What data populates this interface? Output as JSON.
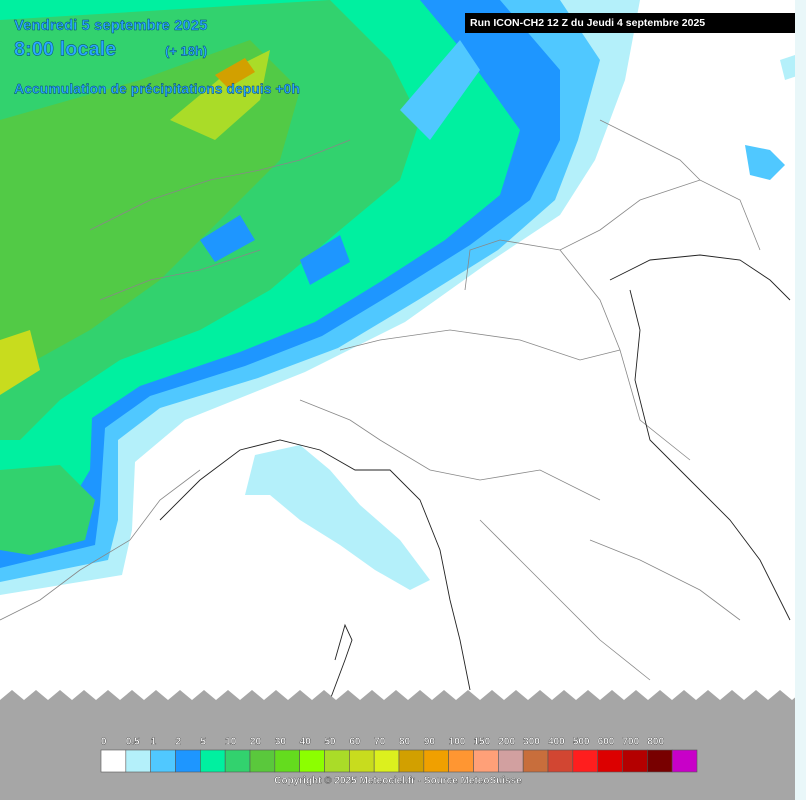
{
  "header": {
    "date": "Vendredi 5 septembre 2025",
    "time": "8:00 locale",
    "offset": "(+ 18h)",
    "field": "Accumulation de précipitations depuis +0h",
    "run": "Run ICON-CH2 12 Z du Jeudi 4 septembre 2025"
  },
  "legend": {
    "labels": [
      "0",
      "0.5",
      "1",
      "2",
      "5",
      "10",
      "20",
      "30",
      "40",
      "50",
      "60",
      "70",
      "80",
      "90",
      "100",
      "150",
      "200",
      "300",
      "400",
      "500",
      "600",
      "700",
      "800"
    ],
    "colors": [
      "#ffffff",
      "#b4f0fa",
      "#50c8ff",
      "#1e96ff",
      "#00f0a0",
      "#32d26e",
      "#5ac83c",
      "#64dc1e",
      "#8cff00",
      "#aadc28",
      "#c8dc1e",
      "#dcf01e",
      "#d2a000",
      "#f0a000",
      "#ff9632",
      "#ffa078",
      "#d2a0a0",
      "#c86e3c",
      "#d24632",
      "#ff1e1e",
      "#dc0000",
      "#b40000",
      "#780000",
      "#c800c8"
    ]
  },
  "footer": {
    "copyright": "Copyright © 2025 Meteociel.fr - Source MeteoSuisse"
  }
}
